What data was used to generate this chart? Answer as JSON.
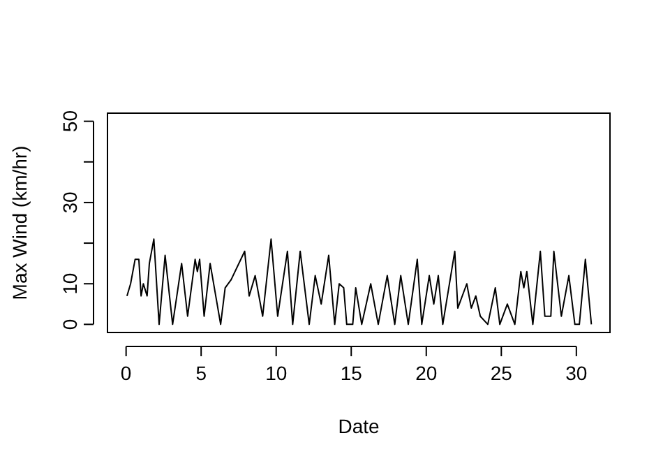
{
  "chart_data": {
    "type": "line",
    "xlabel": "Date",
    "ylabel": "Max Wind (km/hr)",
    "x": [
      0.06,
      0.3,
      0.6,
      0.85,
      1.0,
      1.15,
      1.4,
      1.55,
      1.85,
      2.2,
      2.6,
      3.1,
      3.7,
      4.1,
      4.6,
      4.75,
      4.9,
      5.2,
      5.6,
      6.3,
      6.6,
      7.0,
      7.9,
      8.2,
      8.6,
      9.1,
      9.66,
      10.1,
      10.75,
      11.1,
      11.6,
      12.2,
      12.6,
      13.0,
      13.5,
      13.9,
      14.2,
      14.5,
      14.7,
      15.1,
      15.3,
      15.7,
      16.3,
      16.8,
      17.4,
      17.9,
      18.3,
      18.8,
      19.4,
      19.7,
      20.2,
      20.5,
      20.8,
      21.1,
      21.9,
      22.1,
      22.7,
      23.0,
      23.3,
      23.6,
      24.1,
      24.6,
      24.9,
      25.4,
      25.9,
      26.3,
      26.5,
      26.7,
      27.1,
      27.6,
      27.9,
      28.3,
      28.5,
      29.0,
      29.5,
      29.9,
      30.2,
      30.6,
      31.0
    ],
    "series": [
      {
        "color": "#000000",
        "values": [
          7,
          10,
          16,
          16,
          7,
          10,
          7,
          15,
          21,
          0,
          17,
          0,
          15,
          2,
          16,
          13,
          16,
          2,
          15,
          0,
          9,
          11,
          18,
          7,
          12,
          2,
          21,
          2,
          18,
          0,
          18,
          0,
          12,
          5,
          17,
          0,
          10,
          9,
          0,
          0,
          9,
          0,
          10,
          0,
          12,
          0,
          12,
          0,
          16,
          0,
          12,
          5,
          12,
          0,
          18,
          4,
          10,
          4,
          7,
          2,
          0,
          9,
          0,
          5,
          0,
          13,
          9,
          13,
          0,
          18,
          2,
          2,
          18,
          2,
          12,
          0,
          0,
          16,
          0
        ]
      }
    ],
    "xlim": [
      -1.24,
      32.24
    ],
    "ylim": [
      -2,
      52
    ],
    "xticks": [
      0,
      5,
      10,
      15,
      20,
      25,
      30
    ],
    "yticks": [
      0,
      10,
      {
        "value": 20,
        "label": null
      },
      30,
      {
        "value": 40,
        "label": null
      },
      50
    ],
    "grid": false,
    "marker": "none",
    "line_style": "solid"
  }
}
